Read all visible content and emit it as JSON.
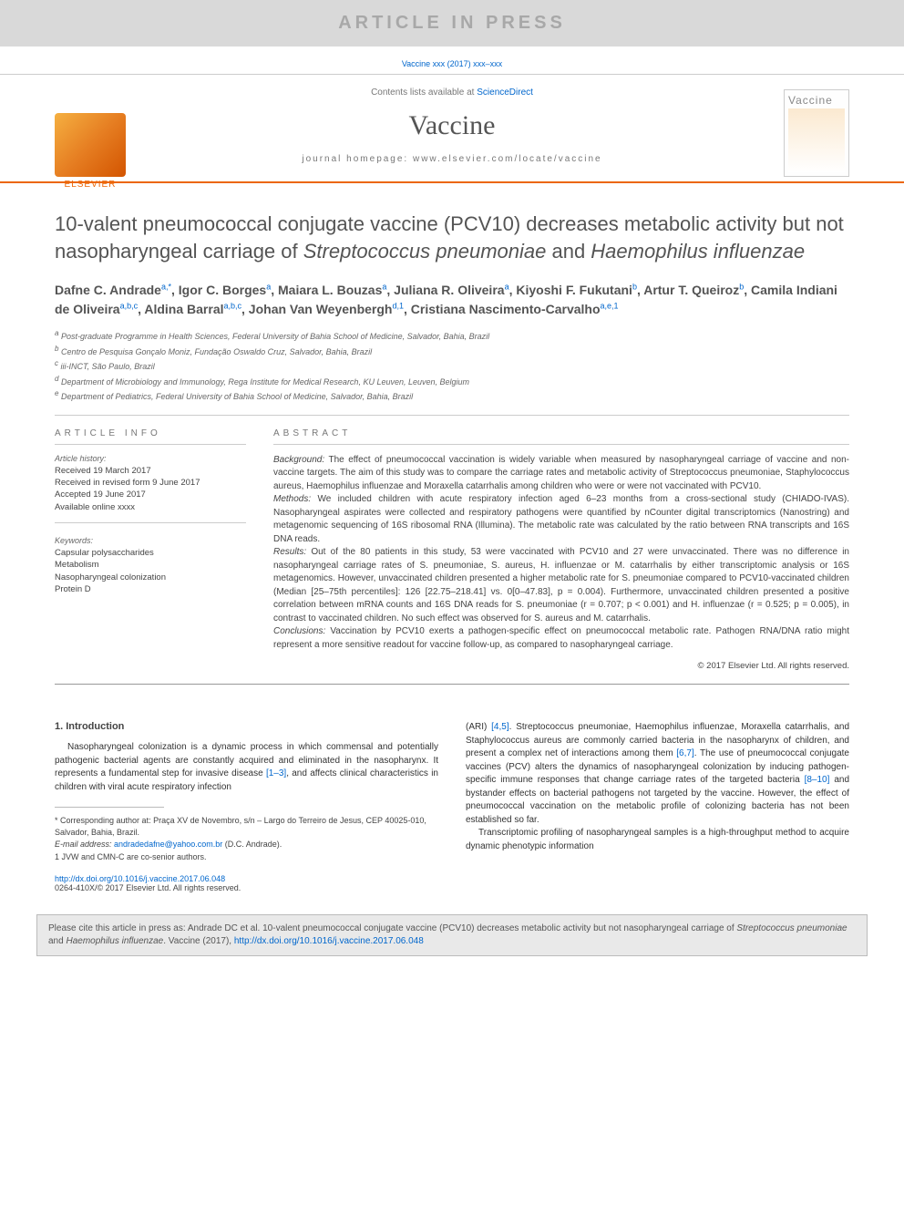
{
  "banner": {
    "text": "ARTICLE IN PRESS"
  },
  "issue_line": "Vaccine xxx (2017) xxx–xxx",
  "masthead": {
    "contents_prefix": "Contents lists available at ",
    "contents_link": "ScienceDirect",
    "journal_title": "Vaccine",
    "homepage_label": "journal homepage: www.elsevier.com/locate/vaccine",
    "publisher_name": "ELSEVIER",
    "cover_label": "Vaccine"
  },
  "title": {
    "plain": "10-valent pneumococcal conjugate vaccine (PCV10) decreases metabolic activity but not nasopharyngeal carriage of ",
    "italic1": "Streptococcus pneumoniae",
    "conj": " and ",
    "italic2": "Haemophilus influenzae"
  },
  "authors_html": "Dafne C. Andrade<sup>a,*</sup>, Igor C. Borges<sup>a</sup>, Maiara L. Bouzas<sup>a</sup>, Juliana R. Oliveira<sup>a</sup>, Kiyoshi F. Fukutani<sup>b</sup>, Artur T. Queiroz<sup>b</sup>, Camila Indiani de Oliveira<sup>a,b,c</sup>, Aldina Barral<sup>a,b,c</sup>, Johan Van Weyenbergh<sup>d,1</sup>, Cristiana Nascimento-Carvalho<sup>a,e,1</sup>",
  "affiliations": [
    {
      "sup": "a",
      "text": "Post-graduate Programme in Health Sciences, Federal University of Bahia School of Medicine, Salvador, Bahia, Brazil"
    },
    {
      "sup": "b",
      "text": "Centro de Pesquisa Gonçalo Moniz, Fundação Oswaldo Cruz, Salvador, Bahia, Brazil"
    },
    {
      "sup": "c",
      "text": "iii-INCT, São Paulo, Brazil"
    },
    {
      "sup": "d",
      "text": "Department of Microbiology and Immunology, Rega Institute for Medical Research, KU Leuven, Leuven, Belgium"
    },
    {
      "sup": "e",
      "text": "Department of Pediatrics, Federal University of Bahia School of Medicine, Salvador, Bahia, Brazil"
    }
  ],
  "article_info": {
    "heading": "ARTICLE INFO",
    "history_label": "Article history:",
    "history": [
      "Received 19 March 2017",
      "Received in revised form 9 June 2017",
      "Accepted 19 June 2017",
      "Available online xxxx"
    ],
    "keywords_label": "Keywords:",
    "keywords": [
      "Capsular polysaccharides",
      "Metabolism",
      "Nasopharyngeal colonization",
      "Protein D"
    ]
  },
  "abstract": {
    "heading": "ABSTRACT",
    "background_label": "Background:",
    "background": " The effect of pneumococcal vaccination is widely variable when measured by nasopharyngeal carriage of vaccine and non-vaccine targets. The aim of this study was to compare the carriage rates and metabolic activity of Streptococcus pneumoniae, Staphylococcus aureus, Haemophilus influenzae and Moraxella catarrhalis among children who were or were not vaccinated with PCV10.",
    "methods_label": "Methods:",
    "methods": " We included children with acute respiratory infection aged 6–23 months from a cross-sectional study (CHIADO-IVAS). Nasopharyngeal aspirates were collected and respiratory pathogens were quantified by nCounter digital transcriptomics (Nanostring) and metagenomic sequencing of 16S ribosomal RNA (Illumina). The metabolic rate was calculated by the ratio between RNA transcripts and 16S DNA reads.",
    "results_label": "Results:",
    "results": " Out of the 80 patients in this study, 53 were vaccinated with PCV10 and 27 were unvaccinated. There was no difference in nasopharyngeal carriage rates of S. pneumoniae, S. aureus, H. influenzae or M. catarrhalis by either transcriptomic analysis or 16S metagenomics. However, unvaccinated children presented a higher metabolic rate for S. pneumoniae compared to PCV10-vaccinated children (Median [25–75th percentiles]: 126 [22.75–218.41] vs. 0[0–47.83], p = 0.004). Furthermore, unvaccinated children presented a positive correlation between mRNA counts and 16S DNA reads for S. pneumoniae (r = 0.707; p < 0.001) and H. influenzae (r = 0.525; p = 0.005), in contrast to vaccinated children. No such effect was observed for S. aureus and M. catarrhalis.",
    "conclusions_label": "Conclusions:",
    "conclusions": " Vaccination by PCV10 exerts a pathogen-specific effect on pneumococcal metabolic rate. Pathogen RNA/DNA ratio might represent a more sensitive readout for vaccine follow-up, as compared to nasopharyngeal carriage.",
    "copyright": "© 2017 Elsevier Ltd. All rights reserved."
  },
  "intro": {
    "heading": "1. Introduction",
    "para1_a": "Nasopharyngeal colonization is a dynamic process in which commensal and potentially pathogenic bacterial agents are constantly acquired and eliminated in the nasopharynx. It represents a fundamental step for invasive disease ",
    "para1_ref1": "[1–3]",
    "para1_b": ", and affects clinical characteristics in children with viral acute respiratory infection",
    "para2_a": "(ARI) ",
    "para2_ref1": "[4,5]",
    "para2_b": ". Streptococcus pneumoniae, Haemophilus influenzae, Moraxella catarrhalis, and Staphylococcus aureus are commonly carried bacteria in the nasopharynx of children, and present a complex net of interactions among them ",
    "para2_ref2": "[6,7]",
    "para2_c": ". The use of pneumococcal conjugate vaccines (PCV) alters the dynamics of nasopharyngeal colonization by inducing pathogen-specific immune responses that change carriage rates of the targeted bacteria ",
    "para2_ref3": "[8–10]",
    "para2_d": " and bystander effects on bacterial pathogens not targeted by the vaccine. However, the effect of pneumococcal vaccination on the metabolic profile of colonizing bacteria has not been established so far.",
    "para3": "Transcriptomic profiling of nasopharyngeal samples is a high-throughput method to acquire dynamic phenotypic information"
  },
  "footnotes": {
    "corr_label": "* Corresponding author at: Praça XV de Novembro, s/n – Largo do Terreiro de Jesus, CEP 40025-010, Salvador, Bahia, Brazil.",
    "email_label": "E-mail address: ",
    "email": "andradedafne@yahoo.com.br",
    "email_suffix": " (D.C. Andrade).",
    "cosenior": "1 JVW and CMN-C are co-senior authors."
  },
  "doi": {
    "url": "http://dx.doi.org/10.1016/j.vaccine.2017.06.048",
    "issn_line": "0264-410X/© 2017 Elsevier Ltd. All rights reserved."
  },
  "cite_box": {
    "prefix": "Please cite this article in press as: Andrade DC et al. 10-valent pneumococcal conjugate vaccine (PCV10) decreases metabolic activity but not nasopharyngeal carriage of ",
    "italic": "Streptococcus pneumoniae",
    "mid": " and ",
    "italic2": "Haemophilus influenzae",
    "suffix": ". Vaccine (2017), ",
    "link": "http://dx.doi.org/10.1016/j.vaccine.2017.06.048"
  },
  "colors": {
    "accent_orange": "#ec6608",
    "link_blue": "#0066cc",
    "banner_bg": "#d9d9d9",
    "banner_text": "#a8a8a8",
    "cite_bg": "#e9e9e9",
    "body_text": "#333333"
  }
}
